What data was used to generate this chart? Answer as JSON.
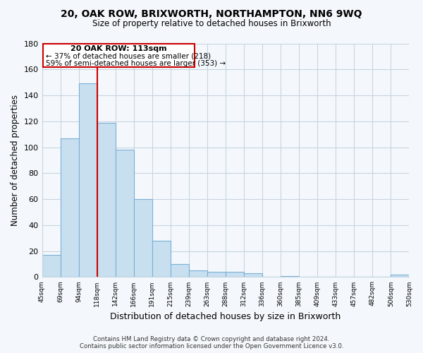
{
  "title": "20, OAK ROW, BRIXWORTH, NORTHAMPTON, NN6 9WQ",
  "subtitle": "Size of property relative to detached houses in Brixworth",
  "xlabel": "Distribution of detached houses by size in Brixworth",
  "ylabel": "Number of detached properties",
  "bar_color": "#c8dff0",
  "bar_edge_color": "#7ab0d4",
  "background_color": "#f4f8fc",
  "grid_color": "#c8d4e0",
  "tick_labels": [
    "45sqm",
    "69sqm",
    "94sqm",
    "118sqm",
    "142sqm",
    "166sqm",
    "191sqm",
    "215sqm",
    "239sqm",
    "263sqm",
    "288sqm",
    "312sqm",
    "336sqm",
    "360sqm",
    "385sqm",
    "409sqm",
    "433sqm",
    "457sqm",
    "482sqm",
    "506sqm",
    "530sqm"
  ],
  "bar_heights": [
    17,
    107,
    149,
    119,
    98,
    60,
    28,
    10,
    5,
    4,
    4,
    3,
    0,
    1,
    0,
    0,
    0,
    0,
    0,
    2
  ],
  "ylim": [
    0,
    180
  ],
  "yticks": [
    0,
    20,
    40,
    60,
    80,
    100,
    120,
    140,
    160,
    180
  ],
  "marker_color": "#cc0000",
  "annotation_line1": "20 OAK ROW: 113sqm",
  "annotation_line2": "← 37% of detached houses are smaller (218)",
  "annotation_line3": "59% of semi-detached houses are larger (353) →",
  "footer_line1": "Contains HM Land Registry data © Crown copyright and database right 2024.",
  "footer_line2": "Contains public sector information licensed under the Open Government Licence v3.0."
}
